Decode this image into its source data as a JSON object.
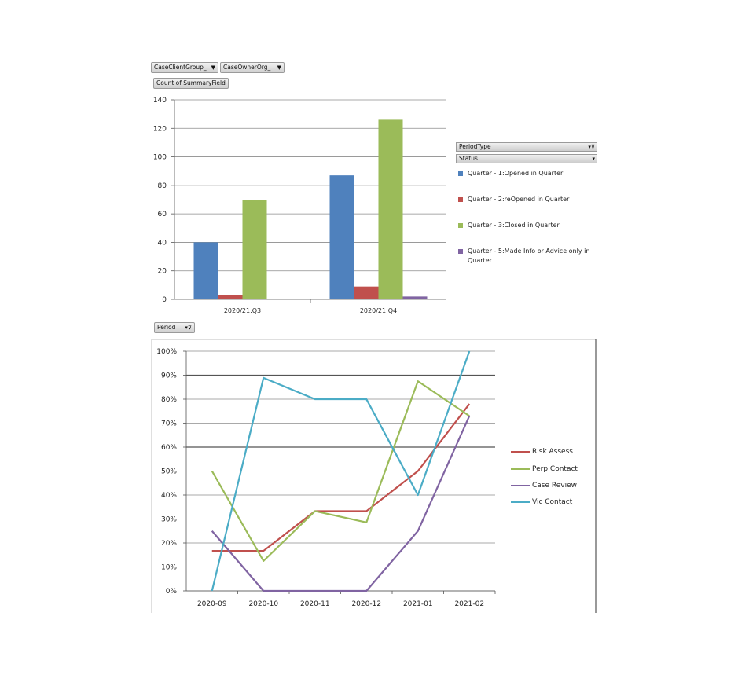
{
  "filters": {
    "client_group": "CaseClientGroup_",
    "owner_org": "CaseOwnerOrg_",
    "summary_field": "Count of SummaryField",
    "period": "Period"
  },
  "icons": {
    "dropdown": "dropdown-arrow-icon",
    "filter": "filter-icon"
  },
  "legend1": {
    "period_type": "PeriodType",
    "status": "Status"
  },
  "legend2": {},
  "chart_data": [
    {
      "type": "bar",
      "categories": [
        "2020/21:Q3",
        "2020/21:Q4"
      ],
      "series": [
        {
          "name": "Quarter - 1:Opened in Quarter",
          "color": "#4f81bd",
          "values": [
            40,
            87
          ]
        },
        {
          "name": "Quarter - 2:reOpened in Quarter",
          "color": "#c0504d",
          "values": [
            3,
            9
          ]
        },
        {
          "name": "Quarter - 3:Closed in Quarter",
          "color": "#9bbb59",
          "values": [
            70,
            126
          ]
        },
        {
          "name": "Quarter - 5:Made Info or Advice only in Quarter",
          "color": "#8064a2",
          "values": [
            0,
            2
          ]
        }
      ],
      "ylim": [
        0,
        140
      ],
      "yticks": [
        0,
        20,
        40,
        60,
        80,
        100,
        120,
        140
      ],
      "grid": true,
      "legend": "right"
    },
    {
      "type": "line",
      "categories": [
        "2020-09",
        "2020-10",
        "2020-11",
        "2020-12",
        "2021-01",
        "2021-02"
      ],
      "series": [
        {
          "name": "Risk Assess",
          "color": "#c0504d",
          "values": [
            16.7,
            16.7,
            33.3,
            33.3,
            50,
            78
          ]
        },
        {
          "name": "Perp Contact",
          "color": "#9bbb59",
          "values": [
            50,
            12.5,
            33.3,
            28.6,
            87.5,
            73
          ]
        },
        {
          "name": "Case Review",
          "color": "#8064a2",
          "values": [
            25,
            0,
            0,
            0,
            25,
            73
          ]
        },
        {
          "name": "Vic Contact",
          "color": "#4bacc6",
          "values": [
            0,
            88.9,
            80,
            80,
            40,
            100
          ]
        }
      ],
      "ylim": [
        0,
        100
      ],
      "yticks": [
        "0%",
        "10%",
        "20%",
        "30%",
        "40%",
        "50%",
        "60%",
        "70%",
        "80%",
        "90%",
        "100%"
      ],
      "grid": true,
      "legend": "right"
    }
  ]
}
